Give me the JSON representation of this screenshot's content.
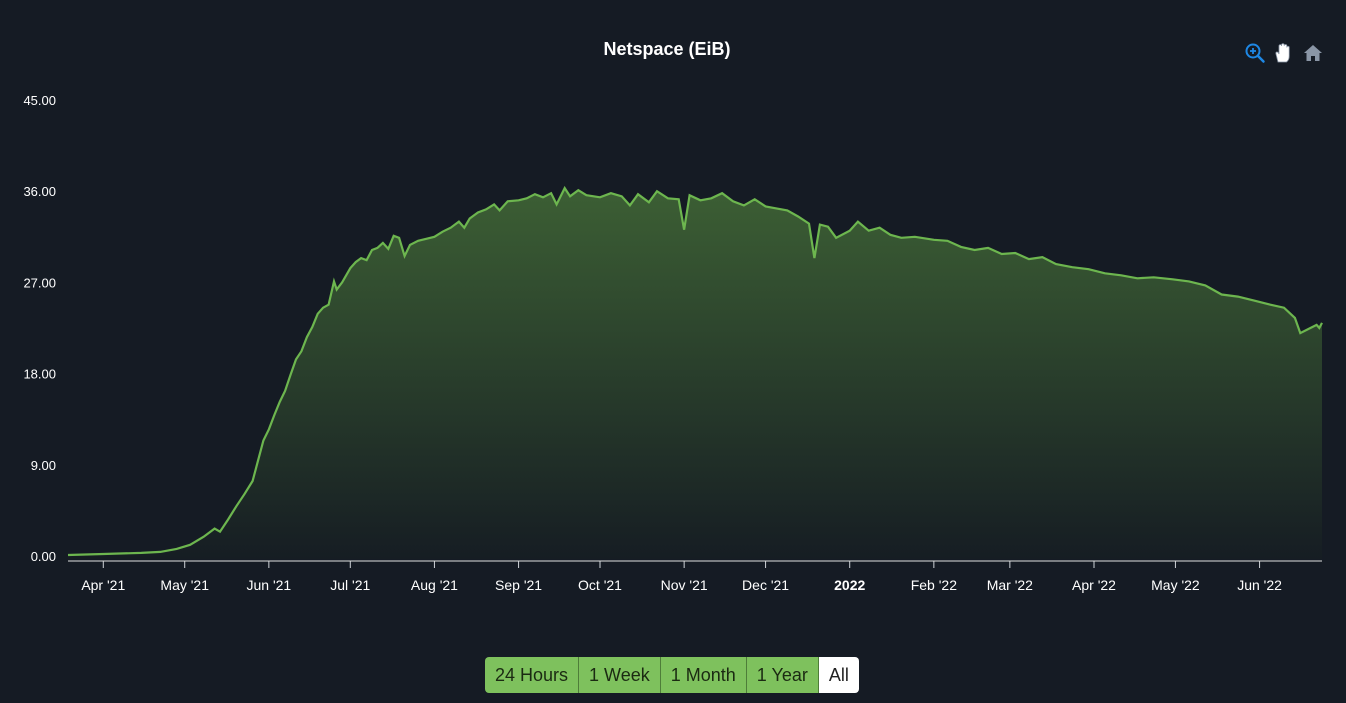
{
  "chart_data": {
    "type": "area",
    "title": "Netspace (EiB)",
    "xlabel": "",
    "ylabel": "",
    "ylim": [
      0,
      45
    ],
    "yticks": [
      "0.00",
      "9.00",
      "18.00",
      "27.00",
      "36.00",
      "45.00"
    ],
    "xticks": [
      {
        "label": "Apr '21",
        "date": "2021-04-01",
        "bold": false
      },
      {
        "label": "May '21",
        "date": "2021-05-01",
        "bold": false
      },
      {
        "label": "Jun '21",
        "date": "2021-06-01",
        "bold": false
      },
      {
        "label": "Jul '21",
        "date": "2021-07-01",
        "bold": false
      },
      {
        "label": "Aug '21",
        "date": "2021-08-01",
        "bold": false
      },
      {
        "label": "Sep '21",
        "date": "2021-09-01",
        "bold": false
      },
      {
        "label": "Oct '21",
        "date": "2021-10-01",
        "bold": false
      },
      {
        "label": "Nov '21",
        "date": "2021-11-01",
        "bold": false
      },
      {
        "label": "Dec '21",
        "date": "2021-12-01",
        "bold": false
      },
      {
        "label": "2022",
        "date": "2022-01-01",
        "bold": true
      },
      {
        "label": "Feb '22",
        "date": "2022-02-01",
        "bold": false
      },
      {
        "label": "Mar '22",
        "date": "2022-03-01",
        "bold": false
      },
      {
        "label": "Apr '22",
        "date": "2022-04-01",
        "bold": false
      },
      {
        "label": "May '22",
        "date": "2022-05-01",
        "bold": false
      },
      {
        "label": "Jun '22",
        "date": "2022-06-01",
        "bold": false
      }
    ],
    "xrange": [
      "2021-03-19",
      "2022-06-24"
    ],
    "grid": false,
    "line_color": "#6db64f",
    "series": [
      {
        "name": "",
        "points": [
          [
            "2021-03-19",
            0.2
          ],
          [
            "2021-04-01",
            0.3
          ],
          [
            "2021-04-15",
            0.4
          ],
          [
            "2021-04-22",
            0.5
          ],
          [
            "2021-04-28",
            0.8
          ],
          [
            "2021-05-03",
            1.2
          ],
          [
            "2021-05-08",
            2.0
          ],
          [
            "2021-05-12",
            2.8
          ],
          [
            "2021-05-14",
            2.5
          ],
          [
            "2021-05-17",
            3.7
          ],
          [
            "2021-05-20",
            5.0
          ],
          [
            "2021-05-23",
            6.2
          ],
          [
            "2021-05-26",
            7.5
          ],
          [
            "2021-05-28",
            9.5
          ],
          [
            "2021-05-30",
            11.5
          ],
          [
            "2021-06-01",
            12.6
          ],
          [
            "2021-06-03",
            14.0
          ],
          [
            "2021-06-05",
            15.3
          ],
          [
            "2021-06-07",
            16.4
          ],
          [
            "2021-06-09",
            18.0
          ],
          [
            "2021-06-11",
            19.5
          ],
          [
            "2021-06-13",
            20.3
          ],
          [
            "2021-06-15",
            21.7
          ],
          [
            "2021-06-17",
            22.7
          ],
          [
            "2021-06-19",
            24.0
          ],
          [
            "2021-06-21",
            24.6
          ],
          [
            "2021-06-23",
            24.9
          ],
          [
            "2021-06-25",
            27.2
          ],
          [
            "2021-06-26",
            26.4
          ],
          [
            "2021-06-28",
            27.1
          ],
          [
            "2021-07-01",
            28.5
          ],
          [
            "2021-07-03",
            29.1
          ],
          [
            "2021-07-05",
            29.5
          ],
          [
            "2021-07-07",
            29.3
          ],
          [
            "2021-07-09",
            30.3
          ],
          [
            "2021-07-11",
            30.5
          ],
          [
            "2021-07-13",
            31.0
          ],
          [
            "2021-07-15",
            30.4
          ],
          [
            "2021-07-17",
            31.7
          ],
          [
            "2021-07-19",
            31.5
          ],
          [
            "2021-07-21",
            29.7
          ],
          [
            "2021-07-23",
            30.8
          ],
          [
            "2021-07-26",
            31.2
          ],
          [
            "2021-07-29",
            31.4
          ],
          [
            "2021-08-01",
            31.6
          ],
          [
            "2021-08-04",
            32.1
          ],
          [
            "2021-08-07",
            32.5
          ],
          [
            "2021-08-10",
            33.1
          ],
          [
            "2021-08-12",
            32.5
          ],
          [
            "2021-08-14",
            33.4
          ],
          [
            "2021-08-17",
            34.0
          ],
          [
            "2021-08-20",
            34.3
          ],
          [
            "2021-08-23",
            34.8
          ],
          [
            "2021-08-25",
            34.2
          ],
          [
            "2021-08-28",
            35.1
          ],
          [
            "2021-09-01",
            35.2
          ],
          [
            "2021-09-04",
            35.4
          ],
          [
            "2021-09-07",
            35.8
          ],
          [
            "2021-09-10",
            35.5
          ],
          [
            "2021-09-13",
            35.9
          ],
          [
            "2021-09-15",
            34.8
          ],
          [
            "2021-09-18",
            36.4
          ],
          [
            "2021-09-20",
            35.6
          ],
          [
            "2021-09-23",
            36.2
          ],
          [
            "2021-09-26",
            35.7
          ],
          [
            "2021-10-01",
            35.5
          ],
          [
            "2021-10-05",
            35.9
          ],
          [
            "2021-10-09",
            35.6
          ],
          [
            "2021-10-12",
            34.7
          ],
          [
            "2021-10-15",
            35.8
          ],
          [
            "2021-10-19",
            35.0
          ],
          [
            "2021-10-22",
            36.1
          ],
          [
            "2021-10-26",
            35.4
          ],
          [
            "2021-10-30",
            35.3
          ],
          [
            "2021-11-01",
            32.3
          ],
          [
            "2021-11-03",
            35.7
          ],
          [
            "2021-11-07",
            35.2
          ],
          [
            "2021-11-11",
            35.4
          ],
          [
            "2021-11-15",
            35.9
          ],
          [
            "2021-11-19",
            35.1
          ],
          [
            "2021-11-23",
            34.7
          ],
          [
            "2021-11-27",
            35.3
          ],
          [
            "2021-12-01",
            34.6
          ],
          [
            "2021-12-05",
            34.4
          ],
          [
            "2021-12-09",
            34.2
          ],
          [
            "2021-12-13",
            33.6
          ],
          [
            "2021-12-17",
            32.9
          ],
          [
            "2021-12-19",
            29.5
          ],
          [
            "2021-12-21",
            32.8
          ],
          [
            "2021-12-24",
            32.6
          ],
          [
            "2021-12-27",
            31.5
          ],
          [
            "2022-01-01",
            32.2
          ],
          [
            "2022-01-04",
            33.1
          ],
          [
            "2022-01-08",
            32.2
          ],
          [
            "2022-01-12",
            32.5
          ],
          [
            "2022-01-16",
            31.8
          ],
          [
            "2022-01-20",
            31.5
          ],
          [
            "2022-01-25",
            31.6
          ],
          [
            "2022-02-01",
            31.3
          ],
          [
            "2022-02-06",
            31.2
          ],
          [
            "2022-02-11",
            30.6
          ],
          [
            "2022-02-16",
            30.3
          ],
          [
            "2022-02-21",
            30.5
          ],
          [
            "2022-02-26",
            29.9
          ],
          [
            "2022-03-03",
            30.0
          ],
          [
            "2022-03-08",
            29.4
          ],
          [
            "2022-03-13",
            29.6
          ],
          [
            "2022-03-18",
            28.9
          ],
          [
            "2022-03-24",
            28.6
          ],
          [
            "2022-03-30",
            28.4
          ],
          [
            "2022-04-05",
            28.0
          ],
          [
            "2022-04-11",
            27.8
          ],
          [
            "2022-04-17",
            27.5
          ],
          [
            "2022-04-23",
            27.6
          ],
          [
            "2022-04-30",
            27.4
          ],
          [
            "2022-05-06",
            27.2
          ],
          [
            "2022-05-12",
            26.8
          ],
          [
            "2022-05-18",
            25.9
          ],
          [
            "2022-05-24",
            25.7
          ],
          [
            "2022-05-30",
            25.3
          ],
          [
            "2022-06-05",
            24.9
          ],
          [
            "2022-06-10",
            24.6
          ],
          [
            "2022-06-14",
            23.6
          ],
          [
            "2022-06-16",
            22.1
          ],
          [
            "2022-06-19",
            22.5
          ],
          [
            "2022-06-22",
            22.9
          ],
          [
            "2022-06-23",
            22.6
          ],
          [
            "2022-06-24",
            23.1
          ]
        ]
      }
    ]
  },
  "toolbar": {
    "icons": [
      "zoom-in-icon",
      "pan-hand-icon",
      "home-icon"
    ],
    "zoom_color": "#1e88e5",
    "icon_color": "#8a96a6"
  },
  "range_selector": {
    "buttons": [
      "24 Hours",
      "1 Week",
      "1 Month",
      "1 Year",
      "All"
    ],
    "active_index": 4
  }
}
